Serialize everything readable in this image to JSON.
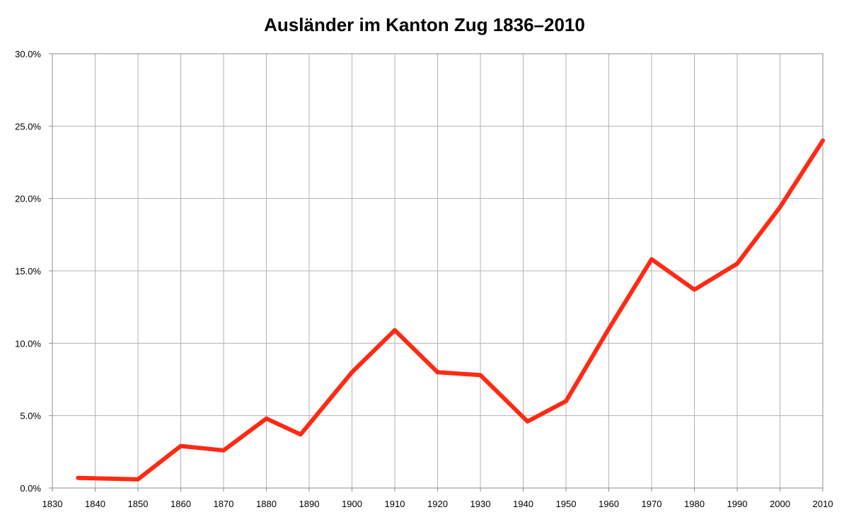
{
  "chart_data": {
    "type": "line",
    "title": "Ausländer im Kanton Zug 1836–2010",
    "xlabel": "",
    "ylabel": "",
    "xlim": [
      1830,
      2010
    ],
    "ylim": [
      0,
      30
    ],
    "x_ticks": [
      1830,
      1840,
      1850,
      1860,
      1870,
      1880,
      1890,
      1900,
      1910,
      1920,
      1930,
      1940,
      1950,
      1960,
      1970,
      1980,
      1990,
      2000,
      2010
    ],
    "x_tick_labels": [
      "1830",
      "1840",
      "1850",
      "1860",
      "1870",
      "1880",
      "1890",
      "1900",
      "1910",
      "1920",
      "1930",
      "1940",
      "1950",
      "1960",
      "1970",
      "1980",
      "1990",
      "2000",
      "2010"
    ],
    "y_ticks": [
      0,
      5,
      10,
      15,
      20,
      25,
      30
    ],
    "y_tick_labels": [
      "0.0%",
      "5.0%",
      "10.0%",
      "15.0%",
      "20.0%",
      "25.0%",
      "30.0%"
    ],
    "grid": true,
    "legend": "none",
    "series": [
      {
        "color": "#ff2a14",
        "x": [
          1836,
          1850,
          1860,
          1870,
          1880,
          1888,
          1900,
          1910,
          1920,
          1930,
          1941,
          1950,
          1960,
          1970,
          1980,
          1990,
          2000,
          2010
        ],
        "y": [
          0.7,
          0.6,
          2.9,
          2.6,
          4.8,
          3.7,
          8.0,
          10.9,
          8.0,
          7.8,
          4.6,
          6.0,
          11.0,
          15.8,
          13.7,
          15.5,
          19.4,
          24.0
        ]
      }
    ],
    "grid_color": "#b3b3b3",
    "axis_color": "#8c8c8c"
  }
}
